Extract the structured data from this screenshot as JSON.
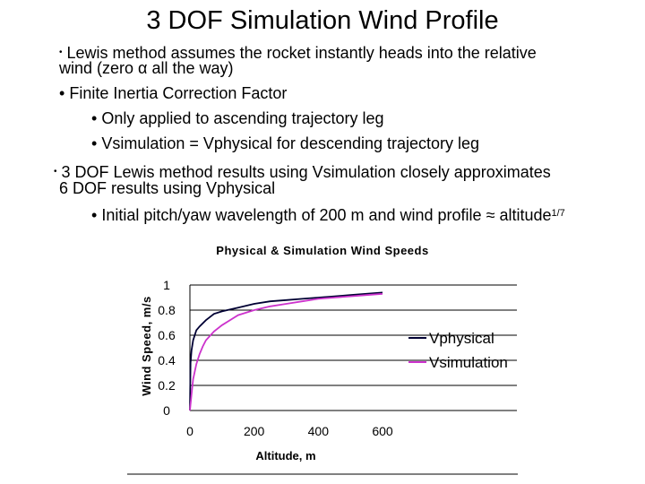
{
  "slide": {
    "title": "3 DOF Simulation Wind Profile",
    "bullets": {
      "b1_line1": "Lewis method assumes the rocket instantly heads into the relative",
      "b1_line2": "wind (zero α all the way)",
      "b2": "Finite Inertia Correction Factor",
      "b2_sub1": "Only applied to ascending trajectory leg",
      "b2_sub2": "Vsimulation = Vphysical for descending trajectory leg",
      "b3_line1": "3 DOF Lewis method results using Vsimulation closely approximates",
      "b3_line2": "6 DOF results using Vphysical",
      "b3_sub1": "Initial pitch/yaw wavelength of 200 m and wind profile ≈ altitude",
      "b3_sub1_exp": "1/7"
    },
    "bullet_char": "•"
  },
  "chart_data": {
    "type": "line",
    "title": "Physical & Simulation Wind Speeds",
    "xlabel": "Altitude, m",
    "ylabel": "Wind Speed, m/s",
    "xlim": [
      0,
      600
    ],
    "ylim": [
      0,
      1
    ],
    "xticks": [
      "0",
      "200",
      "400",
      "600"
    ],
    "yticks": [
      "0",
      "0.2",
      "0.4",
      "0.6",
      "0.8",
      "1"
    ],
    "grid": "horizontal",
    "legend_position": "right",
    "series": [
      {
        "name": "Vphysical",
        "color": "#000033",
        "x": [
          0,
          2,
          5,
          10,
          20,
          30,
          50,
          75,
          100,
          150,
          200,
          250,
          300,
          350,
          400,
          450,
          500,
          550,
          600
        ],
        "y": [
          0,
          0.38,
          0.48,
          0.56,
          0.64,
          0.67,
          0.72,
          0.77,
          0.79,
          0.82,
          0.85,
          0.87,
          0.88,
          0.89,
          0.9,
          0.91,
          0.92,
          0.93,
          0.94
        ]
      },
      {
        "name": "Vsimulation",
        "color": "#cc33cc",
        "x": [
          0,
          5,
          10,
          20,
          30,
          40,
          50,
          75,
          100,
          150,
          200,
          250,
          300,
          350,
          400,
          450,
          500,
          550,
          600
        ],
        "y": [
          0,
          0.13,
          0.25,
          0.37,
          0.45,
          0.51,
          0.56,
          0.63,
          0.68,
          0.76,
          0.8,
          0.83,
          0.85,
          0.87,
          0.89,
          0.9,
          0.91,
          0.92,
          0.93
        ]
      }
    ]
  }
}
